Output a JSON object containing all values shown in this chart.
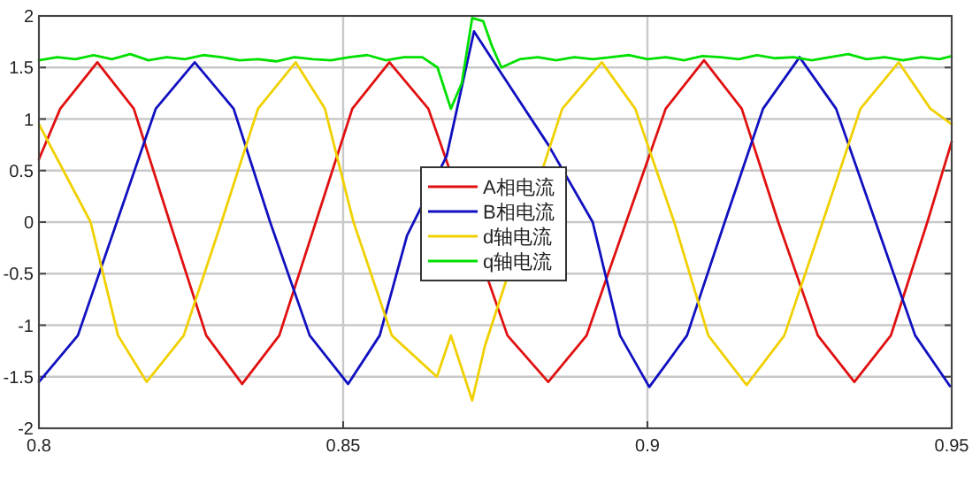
{
  "chart_data": {
    "type": "line",
    "xlim": [
      0.8,
      0.95
    ],
    "ylim": [
      -2,
      2
    ],
    "xticks": [
      0.8,
      0.85,
      0.9,
      0.95
    ],
    "yticks": [
      -2,
      -1.5,
      -1,
      -0.5,
      0,
      0.5,
      1,
      1.5,
      2
    ],
    "grid": true,
    "legend": "center",
    "line_style": "solid",
    "marker": "none",
    "series": [
      {
        "name": "A相电流",
        "color": "#e01010",
        "x": [
          0.8,
          0.8035,
          0.8096,
          0.8156,
          0.8215,
          0.8275,
          0.8334,
          0.8395,
          0.8455,
          0.8515,
          0.8576,
          0.864,
          0.877,
          0.8837,
          0.89,
          0.8965,
          0.903,
          0.9093,
          0.9155,
          0.9215,
          0.928,
          0.934,
          0.94,
          0.946,
          0.95
        ],
        "values": [
          0.61,
          1.1,
          1.55,
          1.1,
          0,
          -1.1,
          -1.57,
          -1.1,
          0,
          1.1,
          1.55,
          1.1,
          -1.1,
          -1.55,
          -1.1,
          0,
          1.1,
          1.57,
          1.1,
          0,
          -1.1,
          -1.55,
          -1.1,
          0,
          0.78
        ]
      },
      {
        "name": "B相电流",
        "color": "#1010c0",
        "x": [
          0.8,
          0.8064,
          0.8128,
          0.8192,
          0.8256,
          0.832,
          0.838,
          0.8445,
          0.8508,
          0.856,
          0.8605,
          0.867,
          0.8715,
          0.8759,
          0.8837,
          0.891,
          0.8955,
          0.9003,
          0.9065,
          0.9127,
          0.919,
          0.925,
          0.931,
          0.9375,
          0.944,
          0.9497
        ],
        "values": [
          -1.55,
          -1.1,
          0,
          1.1,
          1.55,
          1.1,
          0,
          -1.1,
          -1.57,
          -1.1,
          -0.13,
          0.64,
          1.85,
          1.45,
          0.75,
          0,
          -1.1,
          -1.6,
          -1.1,
          0,
          1.1,
          1.6,
          1.1,
          0,
          -1.1,
          -1.59
        ]
      },
      {
        "name": "d轴电流",
        "color": "#f0d000",
        "x": [
          0.8,
          0.8085,
          0.813,
          0.8177,
          0.8238,
          0.83,
          0.836,
          0.8422,
          0.847,
          0.8517,
          0.858,
          0.8654,
          0.8677,
          0.8712,
          0.8733,
          0.886,
          0.8925,
          0.898,
          0.9044,
          0.91,
          0.9163,
          0.9225,
          0.9288,
          0.935,
          0.9413,
          0.9465,
          0.95
        ],
        "values": [
          0.95,
          0,
          -1.1,
          -1.55,
          -1.1,
          0,
          1.1,
          1.55,
          1.1,
          0,
          -1.1,
          -1.5,
          -1.1,
          -1.73,
          -1.2,
          1.1,
          1.55,
          1.1,
          0,
          -1.1,
          -1.58,
          -1.1,
          0,
          1.1,
          1.55,
          1.1,
          0.95
        ]
      },
      {
        "name": "q轴电流",
        "color": "#00e000",
        "x": [
          0.8,
          0.803,
          0.806,
          0.809,
          0.812,
          0.815,
          0.818,
          0.821,
          0.824,
          0.827,
          0.83,
          0.833,
          0.836,
          0.839,
          0.842,
          0.845,
          0.848,
          0.851,
          0.854,
          0.857,
          0.86,
          0.863,
          0.8655,
          0.8677,
          0.8695,
          0.8712,
          0.873,
          0.8745,
          0.876,
          0.879,
          0.882,
          0.885,
          0.888,
          0.891,
          0.894,
          0.897,
          0.9,
          0.903,
          0.906,
          0.909,
          0.912,
          0.915,
          0.918,
          0.921,
          0.924,
          0.927,
          0.93,
          0.933,
          0.936,
          0.939,
          0.942,
          0.945,
          0.948,
          0.95
        ],
        "values": [
          1.57,
          1.6,
          1.58,
          1.62,
          1.58,
          1.63,
          1.57,
          1.6,
          1.58,
          1.62,
          1.6,
          1.57,
          1.58,
          1.56,
          1.6,
          1.58,
          1.57,
          1.6,
          1.62,
          1.57,
          1.6,
          1.6,
          1.5,
          1.1,
          1.35,
          1.98,
          1.95,
          1.7,
          1.5,
          1.58,
          1.6,
          1.57,
          1.6,
          1.58,
          1.6,
          1.62,
          1.58,
          1.6,
          1.57,
          1.61,
          1.6,
          1.58,
          1.62,
          1.59,
          1.6,
          1.57,
          1.6,
          1.63,
          1.58,
          1.6,
          1.57,
          1.6,
          1.58,
          1.61
        ]
      }
    ]
  }
}
